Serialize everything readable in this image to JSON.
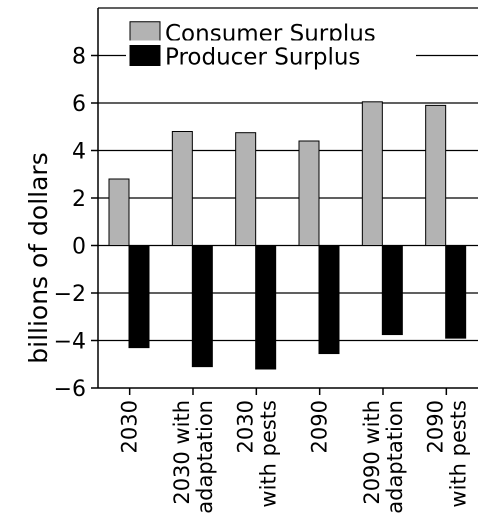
{
  "chart_data": {
    "type": "bar",
    "categories": [
      [
        "2030"
      ],
      [
        "2030 with",
        "adaptation"
      ],
      [
        "2030",
        "with pests"
      ],
      [
        "2090"
      ],
      [
        "2090 with",
        "adaptation"
      ],
      [
        "2090",
        "with pests"
      ]
    ],
    "series": [
      {
        "name": "Consumer Surplus",
        "color": "#b3b3b3",
        "values": [
          2.8,
          4.8,
          4.75,
          4.4,
          6.05,
          5.9
        ]
      },
      {
        "name": "Producer Surplus",
        "color": "#000000",
        "values": [
          -4.3,
          -5.1,
          -5.2,
          -4.55,
          -3.75,
          -3.9
        ]
      }
    ],
    "ylabel": "billions of dollars",
    "xlabel": "",
    "ylim": [
      -6,
      10
    ],
    "yticks": [
      -6,
      -4,
      -2,
      0,
      2,
      4,
      6,
      8
    ],
    "ytick_labels": [
      "−6",
      "−4",
      "−2",
      "0",
      "2",
      "4",
      "6",
      "8"
    ],
    "grid": true,
    "legend_position": "top"
  }
}
